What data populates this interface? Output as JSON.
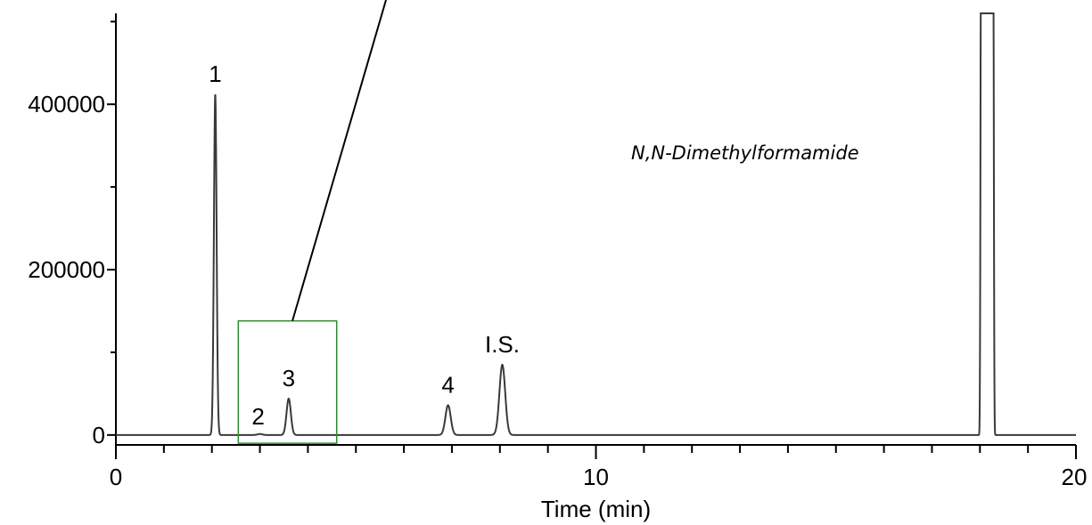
{
  "chart_data": {
    "type": "line",
    "title": "",
    "xlabel": "Time (min)",
    "ylabel": "",
    "xlim": [
      0,
      20
    ],
    "ylim": [
      -12000,
      510000
    ],
    "x_ticks": [
      0,
      10,
      20
    ],
    "y_ticks": [
      0,
      200000,
      400000
    ],
    "x_tick_labels": [
      "0",
      "10",
      "20"
    ],
    "y_tick_labels": [
      "0",
      "200000",
      "400000"
    ],
    "annotation": "N,N-Dimethylformamide",
    "grid": false,
    "legend": "none",
    "line_color": "#3a3a3a",
    "zoom_box_color": "#2e8b2e",
    "zoom_box": {
      "x_range": [
        2.55,
        4.6
      ],
      "y_range": [
        -10000,
        138000
      ]
    },
    "peaks": [
      {
        "label": "1",
        "time": 2.07,
        "height": 412000,
        "width": 0.028
      },
      {
        "label": "2",
        "time": 3.0,
        "height": 1200,
        "width": 0.05
      },
      {
        "label": "3",
        "time": 3.6,
        "height": 44000,
        "width": 0.045
      },
      {
        "label": "4",
        "time": 6.92,
        "height": 36000,
        "width": 0.055
      },
      {
        "label": "I.S.",
        "time": 8.05,
        "height": 85000,
        "width": 0.06
      },
      {
        "label": "",
        "time": 18.15,
        "height": 2000000,
        "width": 0.13,
        "shape": "flat-top"
      }
    ]
  }
}
